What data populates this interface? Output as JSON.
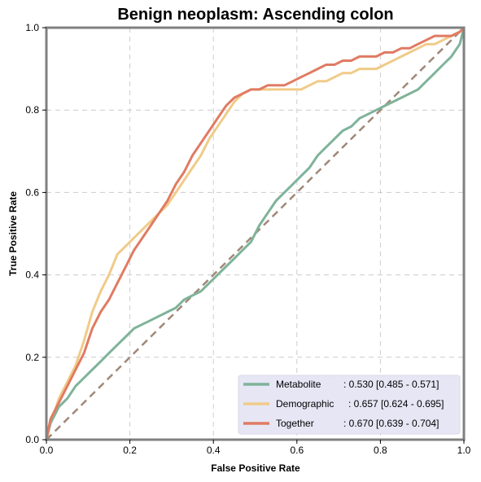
{
  "chart_data": {
    "type": "line",
    "title": "Benign neoplasm: Ascending colon",
    "xlabel": "False Positive Rate",
    "ylabel": "True Positive Rate",
    "xlim": [
      0,
      1
    ],
    "ylim": [
      0,
      1
    ],
    "xticks": [
      "0.0",
      "0.2",
      "0.4",
      "0.6",
      "0.8",
      "1.0"
    ],
    "yticks": [
      "0.0",
      "0.2",
      "0.4",
      "0.6",
      "0.8",
      "1.0"
    ],
    "grid": true,
    "legend_position": "bottom-right",
    "chance_line": {
      "color": "#a08878",
      "style": "dashed",
      "x": [
        0,
        1
      ],
      "y": [
        0,
        1
      ]
    },
    "series": [
      {
        "name": "Metabolite",
        "stat": ": 0.530 [0.485 - 0.571]",
        "color": "#7fb39a",
        "x": [
          0,
          0.01,
          0.02,
          0.03,
          0.05,
          0.07,
          0.09,
          0.11,
          0.13,
          0.15,
          0.17,
          0.19,
          0.21,
          0.23,
          0.25,
          0.27,
          0.29,
          0.31,
          0.33,
          0.35,
          0.37,
          0.39,
          0.41,
          0.43,
          0.45,
          0.47,
          0.49,
          0.51,
          0.53,
          0.55,
          0.57,
          0.59,
          0.61,
          0.63,
          0.65,
          0.67,
          0.69,
          0.71,
          0.73,
          0.75,
          0.77,
          0.79,
          0.81,
          0.83,
          0.85,
          0.87,
          0.89,
          0.91,
          0.93,
          0.95,
          0.97,
          0.99,
          1.0
        ],
        "y": [
          0,
          0.04,
          0.06,
          0.08,
          0.1,
          0.13,
          0.15,
          0.17,
          0.19,
          0.21,
          0.23,
          0.25,
          0.27,
          0.28,
          0.29,
          0.3,
          0.31,
          0.32,
          0.34,
          0.35,
          0.36,
          0.38,
          0.4,
          0.42,
          0.44,
          0.46,
          0.48,
          0.52,
          0.55,
          0.58,
          0.6,
          0.62,
          0.64,
          0.66,
          0.69,
          0.71,
          0.73,
          0.75,
          0.76,
          0.78,
          0.79,
          0.8,
          0.81,
          0.82,
          0.83,
          0.84,
          0.85,
          0.87,
          0.89,
          0.91,
          0.93,
          0.96,
          1.0
        ]
      },
      {
        "name": "Demographic",
        "stat": ": 0.657 [0.624 - 0.695]",
        "color": "#f0cb89",
        "x": [
          0,
          0.01,
          0.02,
          0.03,
          0.05,
          0.07,
          0.09,
          0.11,
          0.13,
          0.15,
          0.17,
          0.19,
          0.21,
          0.23,
          0.25,
          0.27,
          0.29,
          0.31,
          0.33,
          0.35,
          0.37,
          0.39,
          0.41,
          0.43,
          0.45,
          0.47,
          0.49,
          0.51,
          0.53,
          0.55,
          0.57,
          0.59,
          0.61,
          0.63,
          0.65,
          0.67,
          0.69,
          0.71,
          0.73,
          0.75,
          0.77,
          0.79,
          0.81,
          0.83,
          0.85,
          0.87,
          0.89,
          0.91,
          0.93,
          0.95,
          0.97,
          0.99,
          1.0
        ],
        "y": [
          0,
          0.05,
          0.07,
          0.1,
          0.14,
          0.18,
          0.24,
          0.31,
          0.36,
          0.4,
          0.45,
          0.47,
          0.49,
          0.51,
          0.53,
          0.55,
          0.57,
          0.6,
          0.63,
          0.66,
          0.69,
          0.73,
          0.76,
          0.79,
          0.82,
          0.84,
          0.85,
          0.85,
          0.85,
          0.85,
          0.85,
          0.85,
          0.85,
          0.86,
          0.87,
          0.87,
          0.88,
          0.89,
          0.89,
          0.9,
          0.9,
          0.9,
          0.91,
          0.92,
          0.93,
          0.94,
          0.95,
          0.96,
          0.96,
          0.97,
          0.98,
          0.99,
          1.0
        ]
      },
      {
        "name": "Together",
        "stat": ": 0.670 [0.639 - 0.704]",
        "color": "#e07b63",
        "x": [
          0,
          0.01,
          0.02,
          0.03,
          0.05,
          0.07,
          0.09,
          0.11,
          0.13,
          0.15,
          0.17,
          0.19,
          0.21,
          0.23,
          0.25,
          0.27,
          0.29,
          0.31,
          0.33,
          0.35,
          0.37,
          0.39,
          0.41,
          0.43,
          0.45,
          0.47,
          0.49,
          0.51,
          0.53,
          0.55,
          0.57,
          0.59,
          0.61,
          0.63,
          0.65,
          0.67,
          0.69,
          0.71,
          0.73,
          0.75,
          0.77,
          0.79,
          0.81,
          0.83,
          0.85,
          0.87,
          0.89,
          0.91,
          0.93,
          0.95,
          0.97,
          0.99,
          1.0
        ],
        "y": [
          0,
          0.05,
          0.07,
          0.09,
          0.13,
          0.17,
          0.21,
          0.27,
          0.31,
          0.34,
          0.38,
          0.42,
          0.46,
          0.49,
          0.52,
          0.55,
          0.58,
          0.62,
          0.65,
          0.69,
          0.72,
          0.75,
          0.78,
          0.81,
          0.83,
          0.84,
          0.85,
          0.85,
          0.86,
          0.86,
          0.86,
          0.87,
          0.88,
          0.89,
          0.9,
          0.91,
          0.91,
          0.92,
          0.92,
          0.93,
          0.93,
          0.93,
          0.94,
          0.94,
          0.95,
          0.95,
          0.96,
          0.97,
          0.98,
          0.98,
          0.98,
          0.99,
          1.0
        ]
      }
    ]
  },
  "colors": {
    "frame": "#808080",
    "grid": "#cccccc",
    "legend_bg": "#e6e6f5"
  }
}
